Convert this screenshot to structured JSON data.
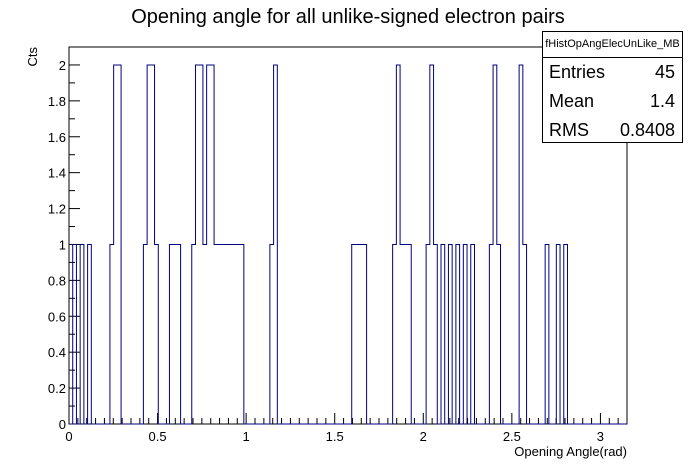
{
  "chart_data": {
    "type": "histogram",
    "title": "Opening angle for all unlike-signed electron pairs",
    "xlabel": "Opening Angle(rad)",
    "ylabel": "Cts",
    "xlim": [
      0,
      3.15
    ],
    "ylim": [
      0,
      2.1
    ],
    "x_ticks": [
      "0",
      "0.5",
      "1",
      "1.5",
      "2",
      "2.5",
      "3"
    ],
    "y_ticks": [
      "0",
      "0.2",
      "0.4",
      "0.6",
      "0.8",
      "1",
      "1.2",
      "1.4",
      "1.6",
      "1.8",
      "2"
    ],
    "line_color": "#000080",
    "grid": false,
    "bins": [
      {
        "x0": 0.021,
        "x1": 0.042,
        "y": 1
      },
      {
        "x0": 0.063,
        "x1": 0.084,
        "y": 1
      },
      {
        "x0": 0.105,
        "x1": 0.126,
        "y": 1
      },
      {
        "x0": 0.231,
        "x1": 0.252,
        "y": 1
      },
      {
        "x0": 0.252,
        "x1": 0.294,
        "y": 2
      },
      {
        "x0": 0.42,
        "x1": 0.441,
        "y": 1
      },
      {
        "x0": 0.441,
        "x1": 0.483,
        "y": 2
      },
      {
        "x0": 0.483,
        "x1": 0.504,
        "y": 1
      },
      {
        "x0": 0.567,
        "x1": 0.63,
        "y": 1
      },
      {
        "x0": 0.693,
        "x1": 0.714,
        "y": 1
      },
      {
        "x0": 0.714,
        "x1": 0.756,
        "y": 2
      },
      {
        "x0": 0.756,
        "x1": 0.777,
        "y": 1
      },
      {
        "x0": 0.777,
        "x1": 0.819,
        "y": 2
      },
      {
        "x0": 0.819,
        "x1": 0.987,
        "y": 1
      },
      {
        "x0": 1.134,
        "x1": 1.155,
        "y": 1
      },
      {
        "x0": 1.155,
        "x1": 1.176,
        "y": 2
      },
      {
        "x0": 1.596,
        "x1": 1.68,
        "y": 1
      },
      {
        "x0": 1.827,
        "x1": 1.848,
        "y": 1
      },
      {
        "x0": 1.848,
        "x1": 1.869,
        "y": 2
      },
      {
        "x0": 1.869,
        "x1": 1.932,
        "y": 1
      },
      {
        "x0": 2.016,
        "x1": 2.037,
        "y": 1
      },
      {
        "x0": 2.037,
        "x1": 2.058,
        "y": 2
      },
      {
        "x0": 2.058,
        "x1": 2.079,
        "y": 1
      },
      {
        "x0": 2.1,
        "x1": 2.121,
        "y": 1
      },
      {
        "x0": 2.142,
        "x1": 2.163,
        "y": 1
      },
      {
        "x0": 2.184,
        "x1": 2.205,
        "y": 1
      },
      {
        "x0": 2.226,
        "x1": 2.247,
        "y": 1
      },
      {
        "x0": 2.268,
        "x1": 2.289,
        "y": 1
      },
      {
        "x0": 2.373,
        "x1": 2.394,
        "y": 1
      },
      {
        "x0": 2.394,
        "x1": 2.415,
        "y": 2
      },
      {
        "x0": 2.415,
        "x1": 2.436,
        "y": 1
      },
      {
        "x0": 2.541,
        "x1": 2.562,
        "y": 2
      },
      {
        "x0": 2.562,
        "x1": 2.583,
        "y": 1
      },
      {
        "x0": 2.688,
        "x1": 2.709,
        "y": 1
      },
      {
        "x0": 2.751,
        "x1": 2.772,
        "y": 1
      },
      {
        "x0": 2.793,
        "x1": 2.814,
        "y": 1
      }
    ]
  },
  "stats": {
    "name": "fHistOpAngElecUnLike_MB",
    "entries_label": "Entries",
    "entries_value": "45",
    "mean_label": "Mean",
    "mean_value": "1.4",
    "rms_label": "RMS",
    "rms_value": "0.8408"
  }
}
